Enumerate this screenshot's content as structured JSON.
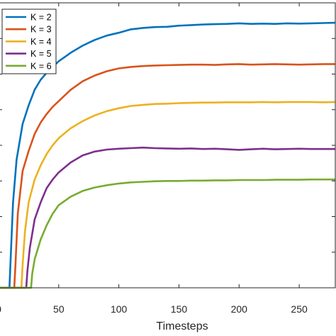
{
  "chart_data": {
    "type": "line",
    "xlabel": "Timesteps",
    "ylabel": "",
    "xlim": [
      0,
      280
    ],
    "ylim": [
      0,
      1
    ],
    "xticks": [
      0,
      50,
      100,
      150,
      200,
      250
    ],
    "xtick_labels": [
      "0",
      "50",
      "100",
      "150",
      "200",
      "250"
    ],
    "grid": false,
    "legend_position": "top-left",
    "series": [
      {
        "name": "K = 2",
        "color": "#0072BD",
        "x": [
          0,
          9,
          10,
          12,
          15,
          20,
          25,
          30,
          35,
          40,
          45,
          50,
          60,
          70,
          80,
          90,
          100,
          110,
          120,
          130,
          140,
          150,
          160,
          170,
          180,
          190,
          200,
          210,
          220,
          230,
          240,
          250,
          260,
          270,
          280
        ],
        "y": [
          0.0,
          0.0,
          0.1,
          0.3,
          0.45,
          0.575,
          0.64,
          0.695,
          0.73,
          0.755,
          0.775,
          0.795,
          0.825,
          0.85,
          0.87,
          0.885,
          0.895,
          0.907,
          0.912,
          0.915,
          0.916,
          0.92,
          0.922,
          0.924,
          0.925,
          0.926,
          0.928,
          0.926,
          0.927,
          0.926,
          0.928,
          0.927,
          0.928,
          0.929,
          0.93
        ]
      },
      {
        "name": "K = 3",
        "color": "#D95319",
        "x": [
          0,
          13,
          14,
          16,
          20,
          25,
          30,
          35,
          40,
          45,
          50,
          60,
          70,
          80,
          90,
          100,
          110,
          120,
          130,
          140,
          150,
          160,
          170,
          180,
          190,
          200,
          210,
          220,
          230,
          240,
          250,
          260,
          270,
          280
        ],
        "y": [
          0.0,
          0.0,
          0.08,
          0.26,
          0.41,
          0.48,
          0.54,
          0.58,
          0.61,
          0.635,
          0.655,
          0.695,
          0.725,
          0.745,
          0.76,
          0.77,
          0.775,
          0.778,
          0.78,
          0.781,
          0.782,
          0.783,
          0.783,
          0.782,
          0.784,
          0.785,
          0.783,
          0.784,
          0.785,
          0.784,
          0.783,
          0.784,
          0.785,
          0.785
        ]
      },
      {
        "name": "K = 4",
        "color": "#EDB120",
        "x": [
          0,
          19,
          20,
          22,
          25,
          30,
          35,
          40,
          45,
          50,
          60,
          70,
          80,
          90,
          100,
          110,
          120,
          130,
          140,
          150,
          160,
          170,
          180,
          190,
          200,
          210,
          220,
          230,
          240,
          250,
          260,
          270,
          280
        ],
        "y": [
          0.0,
          0.0,
          0.08,
          0.2,
          0.3,
          0.38,
          0.43,
          0.47,
          0.5,
          0.525,
          0.56,
          0.585,
          0.605,
          0.62,
          0.63,
          0.638,
          0.642,
          0.645,
          0.646,
          0.648,
          0.649,
          0.65,
          0.65,
          0.651,
          0.651,
          0.651,
          0.652,
          0.651,
          0.652,
          0.652,
          0.652,
          0.651,
          0.652
        ]
      },
      {
        "name": "K = 5",
        "color": "#7E2F8E",
        "x": [
          0,
          23,
          24,
          26,
          30,
          35,
          40,
          45,
          50,
          60,
          70,
          80,
          90,
          100,
          110,
          120,
          130,
          140,
          150,
          160,
          170,
          180,
          190,
          200,
          210,
          220,
          230,
          240,
          250,
          260,
          270,
          280
        ],
        "y": [
          0.0,
          0.0,
          0.06,
          0.14,
          0.24,
          0.3,
          0.35,
          0.38,
          0.405,
          0.44,
          0.465,
          0.478,
          0.485,
          0.488,
          0.49,
          0.492,
          0.49,
          0.489,
          0.488,
          0.489,
          0.487,
          0.488,
          0.486,
          0.484,
          0.486,
          0.488,
          0.486,
          0.487,
          0.488,
          0.487,
          0.487,
          0.487
        ]
      },
      {
        "name": "K = 6",
        "color": "#77AC30",
        "x": [
          0,
          27,
          28,
          30,
          35,
          40,
          45,
          50,
          60,
          70,
          80,
          90,
          100,
          110,
          120,
          130,
          140,
          150,
          160,
          170,
          180,
          190,
          200,
          210,
          220,
          230,
          240,
          250,
          260,
          270,
          280
        ],
        "y": [
          0.0,
          0.0,
          0.05,
          0.1,
          0.17,
          0.22,
          0.26,
          0.29,
          0.32,
          0.34,
          0.352,
          0.36,
          0.366,
          0.37,
          0.372,
          0.374,
          0.375,
          0.375,
          0.376,
          0.376,
          0.377,
          0.377,
          0.378,
          0.378,
          0.378,
          0.379,
          0.379,
          0.379,
          0.38,
          0.38,
          0.38
        ]
      }
    ]
  }
}
